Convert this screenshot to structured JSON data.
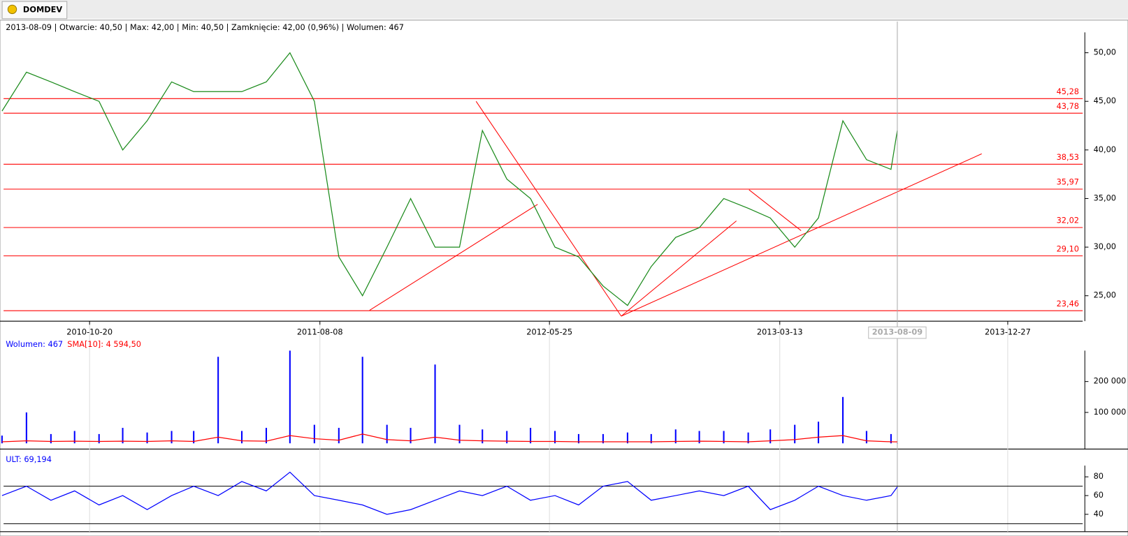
{
  "tab": "DOMDEV",
  "info": "2013-08-09 | Otwarcie: 40,50 | Max: 42,00 | Min: 40,50 | Zamknięcie: 42,00 (0,96%) | Wolumen: 467",
  "cursor": "2013-08-09",
  "chart_data": [
    {
      "type": "line",
      "color": "#1a8a1a",
      "x": [
        "2010-07-01",
        "2010-08-01",
        "2010-09-01",
        "2010-10-01",
        "2010-11-01",
        "2010-12-01",
        "2011-01-01",
        "2011-02-01",
        "2011-03-01",
        "2011-04-01",
        "2011-05-01",
        "2011-06-01",
        "2011-07-01",
        "2011-08-01",
        "2011-09-01",
        "2011-10-01",
        "2011-11-01",
        "2011-12-01",
        "2012-01-01",
        "2012-02-01",
        "2012-03-01",
        "2012-04-01",
        "2012-05-01",
        "2012-06-01",
        "2012-07-01",
        "2012-08-01",
        "2012-09-01",
        "2012-10-01",
        "2012-11-01",
        "2012-12-01",
        "2013-01-01",
        "2013-02-01",
        "2013-03-01",
        "2013-04-01",
        "2013-05-01",
        "2013-06-01",
        "2013-07-01",
        "2013-08-01",
        "2013-08-09"
      ],
      "values": [
        44,
        48,
        47,
        46,
        45,
        40,
        43,
        47,
        46,
        46,
        46,
        47,
        50,
        45,
        29,
        25,
        30,
        35,
        30,
        30,
        42,
        37,
        35,
        30,
        29,
        26,
        24,
        28,
        31,
        32,
        35,
        34,
        33,
        30,
        33,
        43,
        39,
        38,
        42
      ],
      "xlim": [
        "2010-07-03",
        "2014-04-01"
      ],
      "xticks": [
        "2010-10-20",
        "2011-08-08",
        "2012-05-25",
        "2013-03-13",
        "2013-12-27"
      ],
      "ylim": [
        22.9,
        52.1
      ],
      "yticks": [
        {
          "value": 25,
          "label": "25,00"
        },
        {
          "value": 30,
          "label": "30,00"
        },
        {
          "value": 35,
          "label": "35,00"
        },
        {
          "value": 40,
          "label": "40,00"
        },
        {
          "value": 45,
          "label": "45,00"
        },
        {
          "value": 50,
          "label": "50,00"
        }
      ],
      "levels_color": "#ff0000",
      "levels": [
        {
          "value": 45.28,
          "label": "45,28"
        },
        {
          "value": 43.78,
          "label": "43,78"
        },
        {
          "value": 38.53,
          "label": "38,53"
        },
        {
          "value": 35.97,
          "label": "35,97"
        },
        {
          "value": 32.02,
          "label": "32,02"
        },
        {
          "value": 29.1,
          "label": "29,10"
        },
        {
          "value": 23.46,
          "label": "23,46"
        }
      ],
      "trendlines": [
        {
          "x": [
            "2011-10-10",
            "2012-05-10"
          ],
          "y": [
            23.5,
            34.4
          ]
        },
        {
          "x": [
            "2012-02-22",
            "2012-08-24"
          ],
          "y": [
            45.0,
            22.9
          ]
        },
        {
          "x": [
            "2012-08-24",
            "2013-01-17"
          ],
          "y": [
            22.9,
            32.7
          ]
        },
        {
          "x": [
            "2012-08-24",
            "2013-11-24"
          ],
          "y": [
            22.9,
            39.6
          ]
        },
        {
          "x": [
            "2013-02-02",
            "2013-04-09"
          ],
          "y": [
            35.9,
            31.7
          ]
        }
      ]
    },
    {
      "type": "bar",
      "x": [
        "2010-07-01",
        "2010-08-01",
        "2010-09-01",
        "2010-10-01",
        "2010-11-01",
        "2010-12-01",
        "2011-01-01",
        "2011-02-01",
        "2011-03-01",
        "2011-04-01",
        "2011-05-01",
        "2011-06-01",
        "2011-07-01",
        "2011-08-01",
        "2011-09-01",
        "2011-10-01",
        "2011-11-01",
        "2011-12-01",
        "2012-01-01",
        "2012-02-01",
        "2012-03-01",
        "2012-04-01",
        "2012-05-01",
        "2012-06-01",
        "2012-07-01",
        "2012-08-01",
        "2012-09-01",
        "2012-10-01",
        "2012-11-01",
        "2012-12-01",
        "2013-01-01",
        "2013-02-01",
        "2013-03-01",
        "2013-04-01",
        "2013-05-01",
        "2013-06-01",
        "2013-07-01",
        "2013-08-01",
        "2013-08-09"
      ],
      "xlim": [
        "2010-07-03",
        "2014-04-01"
      ],
      "ylim": [
        0,
        300000
      ],
      "yticks": [
        {
          "value": 100000,
          "label": "100 000"
        },
        {
          "value": 200000,
          "label": "200 000"
        }
      ],
      "series": [
        {
          "name": "Wolumen: 467",
          "color": "#0000ff",
          "type": "bar",
          "values": [
            25000,
            100000,
            30000,
            40000,
            30000,
            50000,
            35000,
            40000,
            40000,
            280000,
            40000,
            50000,
            300000,
            60000,
            50000,
            280000,
            60000,
            50000,
            255000,
            60000,
            45000,
            40000,
            50000,
            40000,
            30000,
            30000,
            35000,
            30000,
            45000,
            40000,
            40000,
            35000,
            45000,
            60000,
            70000,
            150000,
            40000,
            30000,
            467
          ]
        },
        {
          "name": "SMA[10]: 4 594,50",
          "color": "#ff0000",
          "type": "line",
          "values": [
            5000,
            8000,
            6000,
            7000,
            6000,
            7000,
            6000,
            8000,
            6000,
            20000,
            8000,
            7000,
            25000,
            15000,
            10000,
            30000,
            12000,
            8000,
            20000,
            10000,
            8000,
            7000,
            6000,
            6000,
            5000,
            5000,
            5000,
            5000,
            6000,
            7000,
            6000,
            5000,
            8000,
            12000,
            20000,
            25000,
            8000,
            5000,
            4594.5
          ]
        }
      ]
    },
    {
      "type": "line",
      "x": [
        "2010-07-01",
        "2010-08-01",
        "2010-09-01",
        "2010-10-01",
        "2010-11-01",
        "2010-12-01",
        "2011-01-01",
        "2011-02-01",
        "2011-03-01",
        "2011-04-01",
        "2011-05-01",
        "2011-06-01",
        "2011-07-01",
        "2011-08-01",
        "2011-09-01",
        "2011-10-01",
        "2011-11-01",
        "2011-12-01",
        "2012-01-01",
        "2012-02-01",
        "2012-03-01",
        "2012-04-01",
        "2012-05-01",
        "2012-06-01",
        "2012-07-01",
        "2012-08-01",
        "2012-09-01",
        "2012-10-01",
        "2012-11-01",
        "2012-12-01",
        "2013-01-01",
        "2013-02-01",
        "2013-03-01",
        "2013-04-01",
        "2013-05-01",
        "2013-06-01",
        "2013-07-01",
        "2013-08-01",
        "2013-08-09"
      ],
      "xlim": [
        "2010-07-03",
        "2014-04-01"
      ],
      "ylim": [
        23,
        92
      ],
      "yticks": [
        40,
        60,
        80
      ],
      "levels": [
        70,
        30
      ],
      "levels_color": "#000000",
      "series": [
        {
          "name": "ULT: 69,194",
          "color": "#0000ff",
          "values": [
            60,
            70,
            55,
            65,
            50,
            60,
            45,
            60,
            70,
            60,
            75,
            65,
            85,
            60,
            55,
            50,
            40,
            45,
            55,
            65,
            60,
            70,
            55,
            60,
            50,
            70,
            75,
            55,
            60,
            65,
            60,
            70,
            45,
            55,
            70,
            60,
            55,
            60,
            69.194
          ]
        }
      ]
    }
  ]
}
